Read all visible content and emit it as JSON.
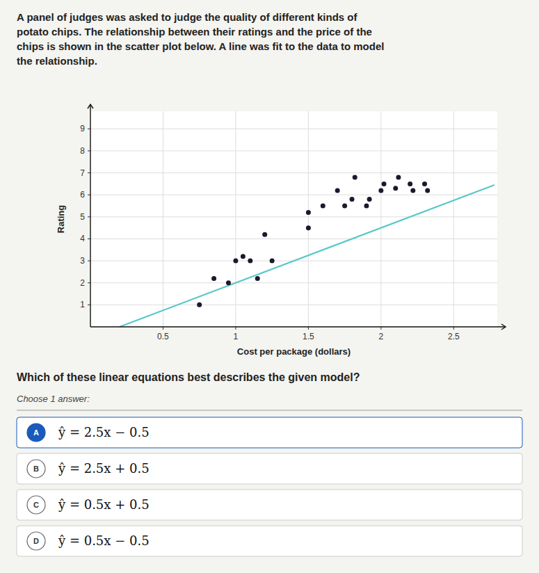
{
  "chart_data": {
    "type": "scatter",
    "description": "A panel of judges was asked to judge the quality of different kinds of\npotato chips. The relationship between their ratings and the price of the\nchips is shown in the scatter plot below. A line was fit to the data to model\nthe relationship.",
    "x_label": "Cost per package (dollars)",
    "y_label": "Rating",
    "xlim": [
      0,
      2.8
    ],
    "ylim": [
      0,
      9.8
    ],
    "xticks": [
      0.5,
      1,
      1.5,
      2,
      2.5
    ],
    "yticks": [
      1,
      2,
      3,
      4,
      5,
      6,
      7,
      8,
      9
    ],
    "grid": true,
    "series": [
      {
        "type": "scatter",
        "color": "#1a1a2e",
        "x": [
          0.75,
          0.85,
          0.95,
          1.0,
          1.05,
          1.1,
          1.15,
          1.2,
          1.25,
          1.5,
          1.5,
          1.6,
          1.7,
          1.75,
          1.8,
          1.82,
          1.9,
          1.92,
          2.0,
          2.02,
          2.1,
          2.12,
          2.2,
          2.22,
          2.3,
          2.32
        ],
        "values": [
          1.0,
          2.2,
          2.0,
          3.0,
          3.2,
          3.0,
          2.2,
          4.2,
          3.0,
          4.5,
          5.2,
          5.5,
          6.2,
          5.5,
          5.8,
          6.8,
          5.5,
          5.8,
          6.2,
          6.5,
          6.3,
          6.8,
          6.5,
          6.2,
          6.5,
          6.2
        ]
      },
      {
        "type": "line",
        "color": "#5bc8c8",
        "x": [
          0.2,
          2.78
        ],
        "values": [
          0.0,
          6.45
        ]
      }
    ],
    "question": "Which of these linear equations best describes the given model?",
    "prompt": "Choose 1 answer:",
    "options": [
      {
        "label": "A",
        "text": "ŷ = 2.5x − 0.5",
        "selected": true
      },
      {
        "label": "B",
        "text": "ŷ = 2.5x + 0.5",
        "selected": false
      },
      {
        "label": "C",
        "text": "ŷ = 0.5x + 0.5",
        "selected": false
      },
      {
        "label": "D",
        "text": "ŷ = 0.5x − 0.5",
        "selected": false
      }
    ]
  }
}
